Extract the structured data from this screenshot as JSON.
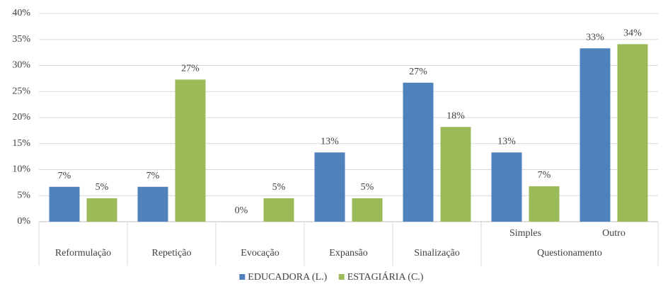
{
  "chart_data": {
    "type": "bar",
    "categories": [
      "Reformulação",
      "Repetição",
      "Evocação",
      "Expansão",
      "Sinalização",
      "Simples",
      "Outro"
    ],
    "category_parents": [
      null,
      null,
      null,
      null,
      null,
      "Questionamento",
      "Questionamento"
    ],
    "series": [
      {
        "name": "EDUCADORA (L.)",
        "color": "#4f81bd",
        "values": [
          6.7,
          6.7,
          0,
          13.3,
          26.7,
          13.3,
          33.3
        ],
        "value_labels": [
          "7%",
          "7%",
          "0%",
          "13%",
          "27%",
          "13%",
          "33%"
        ]
      },
      {
        "name": "ESTAGIÁRIA (C.)",
        "color": "#9bbb59",
        "values": [
          4.5,
          27.3,
          4.5,
          4.5,
          18.2,
          6.8,
          34.1
        ],
        "value_labels": [
          "5%",
          "27%",
          "5%",
          "5%",
          "18%",
          "7%",
          "34%"
        ]
      }
    ],
    "ylim": [
      0,
      40
    ],
    "yticks": [
      {
        "value": 0,
        "label": "0%"
      },
      {
        "value": 5,
        "label": "5%"
      },
      {
        "value": 10,
        "label": "10%"
      },
      {
        "value": 15,
        "label": "15%"
      },
      {
        "value": 20,
        "label": "20%"
      },
      {
        "value": 25,
        "label": "25%"
      },
      {
        "value": 30,
        "label": "30%"
      },
      {
        "value": 35,
        "label": "35%"
      },
      {
        "value": 40,
        "label": "40%"
      }
    ],
    "grid": true,
    "legend": "bottom"
  }
}
